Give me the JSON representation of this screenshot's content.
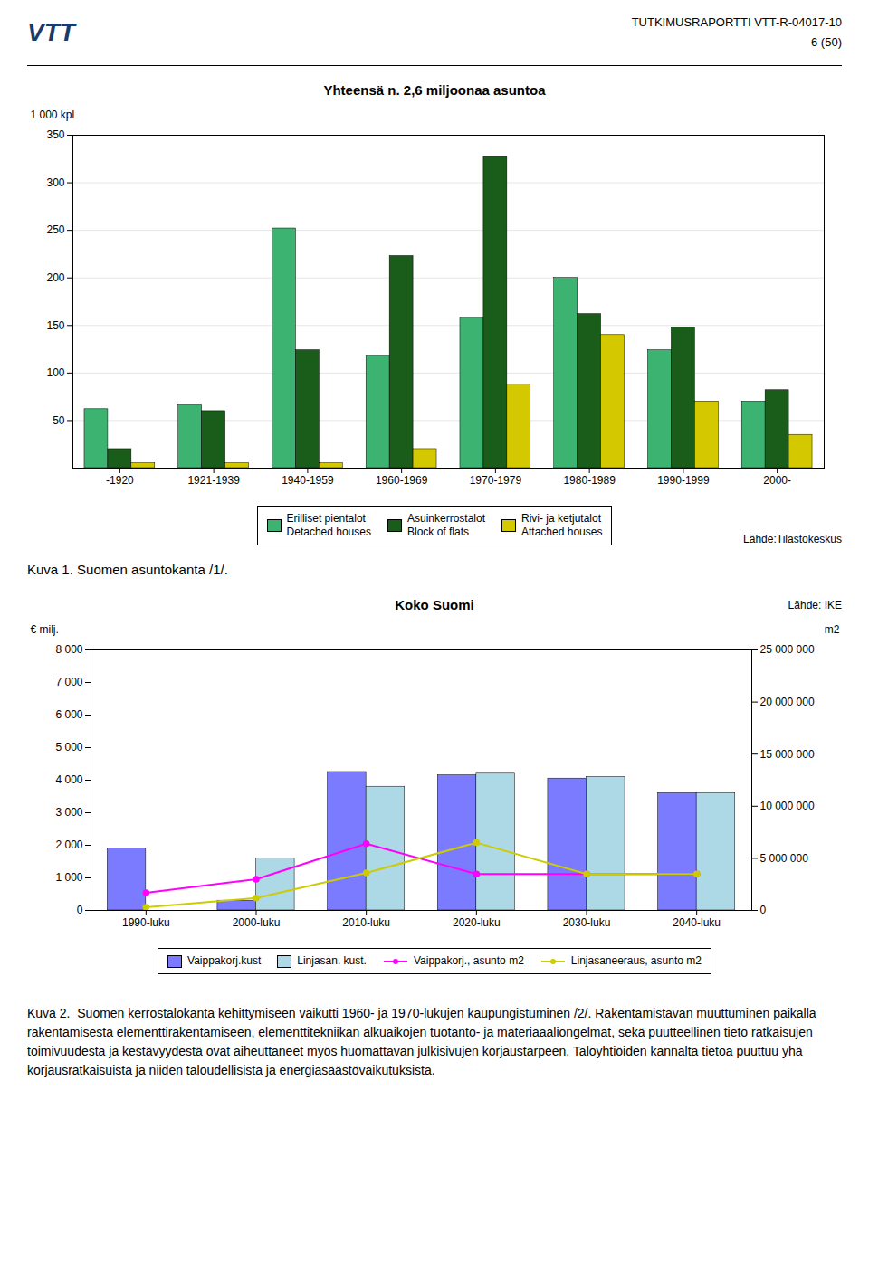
{
  "chart_data": [
    {
      "type": "bar",
      "title": "Yhteensä n. 2,6 miljoonaa asuntoa",
      "ylabel": "1 000 kpl",
      "categories": [
        "-1920",
        "1921-1939",
        "1940-1959",
        "1960-1969",
        "1970-1979",
        "1980-1989",
        "1990-1999",
        "2000-"
      ],
      "series": [
        {
          "name": "Erilliset pientalot\nDetached houses",
          "color": "#3cb371",
          "values": [
            62,
            66,
            252,
            118,
            158,
            200,
            124,
            70
          ]
        },
        {
          "name": "Asuinkerrostalot\nBlock of flats",
          "color": "#1a5c1a",
          "values": [
            20,
            60,
            124,
            223,
            327,
            162,
            148,
            82
          ]
        },
        {
          "name": "Rivi- ja ketjutalot\nAttached houses",
          "color": "#d4c800",
          "values": [
            5,
            5,
            5,
            20,
            88,
            140,
            70,
            35
          ]
        }
      ],
      "ylim": [
        0,
        350
      ],
      "yticks": [
        50,
        100,
        150,
        200,
        250,
        300,
        350
      ],
      "grid": true,
      "legend": "bottom",
      "annotations": [
        "VTT",
        "TUTKIMUSRAPORTTI VTT-R-04017-10",
        "6 (50)",
        "Lähde:Tilastokeskus",
        "Kuva 1. Suomen asuntokanta /1/."
      ]
    },
    {
      "type": "bar",
      "title": "Koko Suomi",
      "ylabel": "€ milj.",
      "y2label": "m2",
      "categories": [
        "1990-luku",
        "2000-luku",
        "2010-luku",
        "2020-luku",
        "2030-luku",
        "2040-luku"
      ],
      "series": [
        {
          "name": "Vaippakorj.kust",
          "type": "bar",
          "color": "#7b7bff",
          "values": [
            1900,
            300,
            4250,
            4150,
            4050,
            3600
          ]
        },
        {
          "name": "Linjasan. kust.",
          "type": "bar",
          "color": "#add8e6",
          "values": [
            0,
            1600,
            3800,
            4200,
            4100,
            3600
          ]
        },
        {
          "name": "Vaippakorj., asunto m2",
          "type": "line",
          "axis": "y2",
          "marker": "circle",
          "color": "#ff00ff",
          "values": [
            1700000,
            3000000,
            6400000,
            3500000,
            3500000,
            3500000
          ]
        },
        {
          "name": "Linjasaneeraus, asunto m2",
          "type": "line",
          "axis": "y2",
          "marker": "circle",
          "color": "#cccc00",
          "values": [
            300000,
            1200000,
            3600000,
            6500000,
            3500000,
            3500000
          ]
        }
      ],
      "ylim": [
        0,
        8000
      ],
      "yticks": [
        0,
        {
          "value": 1000,
          "label": "1 000"
        },
        {
          "value": 2000,
          "label": "2 000"
        },
        {
          "value": 3000,
          "label": "3 000"
        },
        {
          "value": 4000,
          "label": "4 000"
        },
        {
          "value": 5000,
          "label": "5 000"
        },
        {
          "value": 6000,
          "label": "6 000"
        },
        {
          "value": 7000,
          "label": "7 000"
        },
        {
          "value": 8000,
          "label": "8 000"
        }
      ],
      "y2lim": [
        0,
        25000000
      ],
      "y2ticks": [
        0,
        {
          "value": 5000000,
          "label": "5 000 000"
        },
        {
          "value": 10000000,
          "label": "10 000 000"
        },
        {
          "value": 15000000,
          "label": "15 000 000"
        },
        {
          "value": 20000000,
          "label": "20 000 000"
        },
        {
          "value": 25000000,
          "label": "25 000 000"
        }
      ],
      "grid": false,
      "legend": "bottom",
      "annotations": [
        "Lähde: IKE",
        "Kuva 2.  Suomen kerrostalokanta kehittymiseen vaikutti 1960- ja 1970-lukujen kaupungistuminen /2/. Rakentamistavan muuttuminen paikalla rakentamisesta elementtirakentamiseen, elementtitekniikan alkuaikojen tuotanto- ja materiaaaliongelmat, sekä puutteellinen tieto ratkaisujen toimivuudesta ja kestävyydestä ovat aiheuttaneet myös huomattavan julkisivujen korjaustarpeen. Taloyhtiöiden kannalta tietoa puuttuu yhä korjausratkaisuista ja niiden taloudellisista ja energiasäästövaikutuksista."
      ]
    }
  ]
}
